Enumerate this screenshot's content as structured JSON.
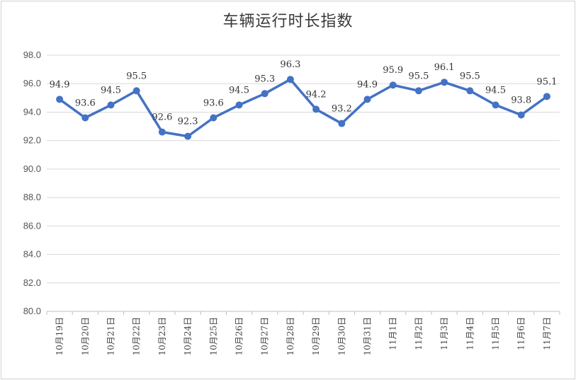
{
  "chart_data": {
    "type": "line",
    "title": "车辆运行时长指数",
    "xlabel": "",
    "ylabel": "",
    "ylim": [
      80,
      98
    ],
    "yticks": [
      "80.0",
      "82.0",
      "84.0",
      "86.0",
      "88.0",
      "90.0",
      "92.0",
      "94.0",
      "96.0",
      "98.0"
    ],
    "grid": true,
    "legend": "none",
    "categories": [
      "10月19日",
      "10月20日",
      "10月21日",
      "10月22日",
      "10月23日",
      "10月24日",
      "10月25日",
      "10月26日",
      "10月27日",
      "10月28日",
      "10月29日",
      "10月30日",
      "10月31日",
      "11月1日",
      "11月2日",
      "11月3日",
      "11月4日",
      "11月5日",
      "11月6日",
      "11月7日"
    ],
    "values": [
      94.9,
      93.6,
      94.5,
      95.5,
      92.6,
      92.3,
      93.6,
      94.5,
      95.3,
      96.3,
      94.2,
      93.2,
      94.9,
      95.9,
      95.5,
      96.1,
      95.5,
      94.5,
      93.8,
      95.1
    ],
    "data_labels": [
      "94.9",
      "93.6",
      "94.5",
      "95.5",
      "92.6",
      "92.3",
      "93.6",
      "94.5",
      "95.3",
      "96.3",
      "94.2",
      "93.2",
      "94.9",
      "95.9",
      "95.5",
      "96.1",
      "95.5",
      "94.5",
      "93.8",
      "95.1"
    ],
    "series_color": "#4472c4",
    "grid_color": "#d9d9d9"
  }
}
